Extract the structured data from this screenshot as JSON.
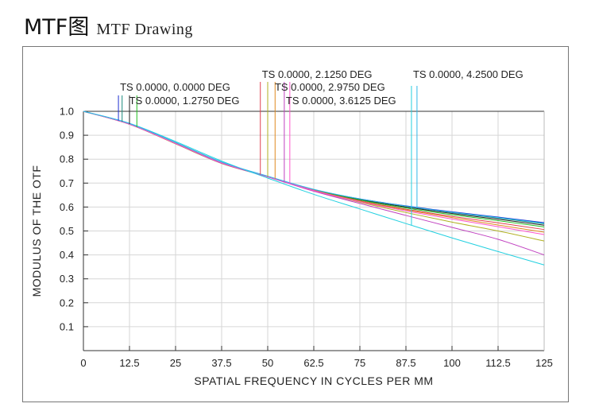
{
  "header": {
    "title": "MTF图",
    "subtitle": "MTF Drawing"
  },
  "chart_data": {
    "type": "line",
    "xlabel": "SPATIAL FREQUENCY IN CYCLES PER MM",
    "ylabel": "MODULUS OF THE OTF",
    "xlim": [
      0,
      125
    ],
    "ylim": [
      0,
      1.0
    ],
    "x_ticks": [
      "0",
      "12.5",
      "25",
      "37.5",
      "50",
      "62.5",
      "75",
      "87.5",
      "100",
      "112.5",
      "125"
    ],
    "y_ticks": [
      "0.1",
      "0.2",
      "0.3",
      "0.4",
      "0.5",
      "0.6",
      "0.7",
      "0.8",
      "0.9",
      "1.0"
    ],
    "grid": true,
    "x": [
      0,
      12.5,
      25,
      37.5,
      50,
      62.5,
      75,
      87.5,
      100,
      112.5,
      125
    ],
    "series": [
      {
        "field": "TS 0.0000, 0.0000 DEG",
        "color": "#1f2fd0",
        "marker_x": 9.5,
        "values": [
          1.0,
          0.948,
          0.869,
          0.787,
          0.728,
          0.673,
          0.634,
          0.605,
          0.58,
          0.558,
          0.535
        ]
      },
      {
        "field": "TS 0.0000, 0.0000 DEG",
        "color": "#1a8a7a",
        "marker_x": 10.5,
        "values": [
          1.0,
          0.948,
          0.869,
          0.787,
          0.728,
          0.673,
          0.633,
          0.603,
          0.577,
          0.554,
          0.53
        ]
      },
      {
        "field": "TS 0.0000, 1.2750 DEG",
        "color": "#222222",
        "marker_x": 12.5,
        "values": [
          1.0,
          0.947,
          0.868,
          0.786,
          0.727,
          0.672,
          0.631,
          0.6,
          0.573,
          0.549,
          0.524
        ]
      },
      {
        "field": "TS 0.0000, 1.2750 DEG",
        "color": "#20c020",
        "marker_x": 14.5,
        "values": [
          1.0,
          0.947,
          0.867,
          0.785,
          0.727,
          0.671,
          0.629,
          0.596,
          0.568,
          0.543,
          0.517
        ]
      },
      {
        "field": "TS 0.0000, 2.1250 DEG",
        "color": "#e04050",
        "marker_x": 48,
        "values": [
          1.0,
          0.946,
          0.865,
          0.783,
          0.727,
          0.67,
          0.626,
          0.591,
          0.561,
          0.534,
          0.506
        ]
      },
      {
        "field": "TS 0.0000, 2.1250 DEG",
        "color": "#b0b020",
        "marker_x": 50,
        "values": [
          1.0,
          0.946,
          0.864,
          0.782,
          0.727,
          0.668,
          0.62,
          0.577,
          0.537,
          0.5,
          0.458
        ]
      },
      {
        "field": "TS 0.0000, 2.9750 DEG",
        "color": "#e08a20",
        "marker_x": 52,
        "values": [
          1.0,
          0.947,
          0.866,
          0.784,
          0.728,
          0.67,
          0.624,
          0.588,
          0.556,
          0.525,
          0.495
        ]
      },
      {
        "field": "TS 0.0000, 2.9750 DEG",
        "color": "#c040c0",
        "marker_x": 54.5,
        "values": [
          1.0,
          0.946,
          0.865,
          0.783,
          0.726,
          0.666,
          0.615,
          0.565,
          0.515,
          0.465,
          0.4
        ]
      },
      {
        "field": "TS 0.0000, 3.6125 DEG",
        "color": "#ff55cc",
        "marker_x": 56,
        "values": [
          1.0,
          0.947,
          0.866,
          0.785,
          0.728,
          0.669,
          0.622,
          0.584,
          0.55,
          0.518,
          0.485
        ]
      },
      {
        "field": "TS 0.0000, 4.2500 DEG",
        "color": "#22d0e0",
        "marker_x": 89,
        "values": [
          1.0,
          0.95,
          0.874,
          0.792,
          0.721,
          0.653,
          0.592,
          0.531,
          0.471,
          0.414,
          0.358
        ]
      },
      {
        "field": "TS 0.0000, 4.2500 DEG",
        "color": "#30b8e8",
        "marker_x": 90.5,
        "values": [
          1.0,
          0.949,
          0.87,
          0.788,
          0.729,
          0.674,
          0.634,
          0.604,
          0.578,
          0.556,
          0.532
        ]
      }
    ],
    "annotations": [
      {
        "text": "TS 0.0000, 0.0000 DEG",
        "x": 9.5,
        "row": 2
      },
      {
        "text": "TS 0.0000, 1.2750 DEG",
        "x": 12,
        "row": 3
      },
      {
        "text": "TS 0.0000, 2.1250 DEG",
        "x": 48,
        "row": 1
      },
      {
        "text": "TS 0.0000, 2.9750 DEG",
        "x": 51.5,
        "row": 2
      },
      {
        "text": "TS 0.0000, 3.6125 DEG",
        "x": 54.5,
        "row": 3
      },
      {
        "text": "TS 0.0000, 4.2500 DEG",
        "x": 89,
        "row": 1
      }
    ]
  }
}
